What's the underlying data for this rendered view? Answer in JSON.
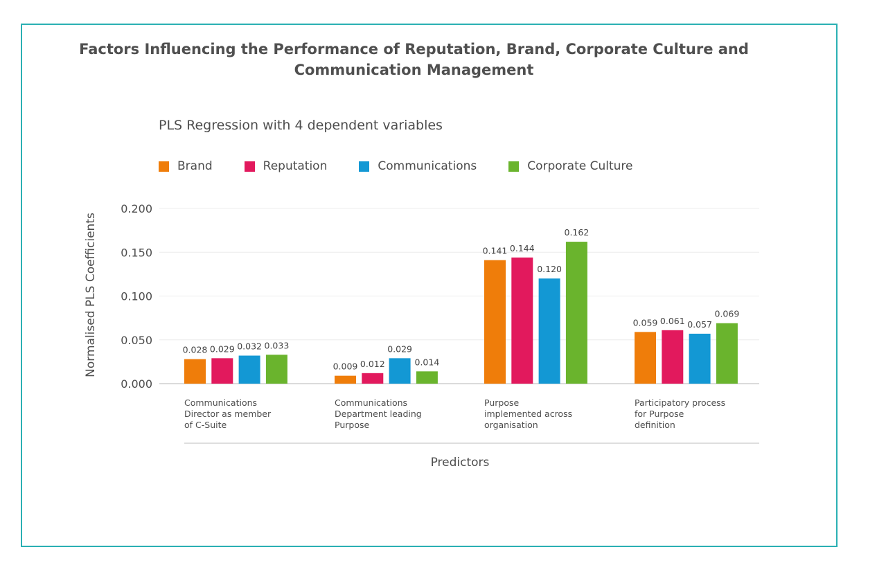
{
  "title": "Factors Influencing the Performance of Reputation, Brand, Corporate Culture and Communication Management",
  "subtitle": "PLS Regression with 4 dependent variables",
  "colors": {
    "frame": "#2ab0b3",
    "brand": "#ef7d0a",
    "reputation": "#e2195d",
    "communications": "#1398d4",
    "corporate_culture": "#6ab42d"
  },
  "legend": [
    {
      "label": "Brand",
      "color": "#ef7d0a"
    },
    {
      "label": "Reputation",
      "color": "#e2195d"
    },
    {
      "label": "Communications",
      "color": "#1398d4"
    },
    {
      "label": "Corporate Culture",
      "color": "#6ab42d"
    }
  ],
  "chart_data": {
    "type": "bar",
    "title": "Factors Influencing the Performance of Reputation, Brand, Corporate Culture and Communication Management",
    "subtitle": "PLS Regression with 4 dependent variables",
    "xlabel": "Predictors",
    "ylabel": "Normalised PLS Coefficients",
    "ylim": [
      0,
      0.2
    ],
    "yticks": [
      "0.000",
      "0.050",
      "0.100",
      "0.150",
      "0.200"
    ],
    "grid": true,
    "legend_position": "top-left",
    "categories": [
      [
        "Communications",
        "Director as member",
        "of C-Suite"
      ],
      [
        "Communications",
        "Department leading",
        "Purpose"
      ],
      [
        "Purpose",
        "implemented across",
        "organisation"
      ],
      [
        "Participatory process",
        "for Purpose",
        "definition"
      ]
    ],
    "series": [
      {
        "name": "Brand",
        "color": "#ef7d0a",
        "values": [
          0.028,
          0.009,
          0.141,
          0.059
        ],
        "labels": [
          "0.028",
          "0.009",
          "0.141",
          "0.059"
        ]
      },
      {
        "name": "Reputation",
        "color": "#e2195d",
        "values": [
          0.029,
          0.012,
          0.144,
          0.061
        ],
        "labels": [
          "0.029",
          "0.012",
          "0.144",
          "0.061"
        ]
      },
      {
        "name": "Communications",
        "color": "#1398d4",
        "values": [
          0.032,
          0.029,
          0.12,
          0.057
        ],
        "labels": [
          "0.032",
          "0.029",
          "0.120",
          "0.057"
        ]
      },
      {
        "name": "Corporate Culture",
        "color": "#6ab42d",
        "values": [
          0.033,
          0.014,
          0.162,
          0.069
        ],
        "labels": [
          "0.033",
          "0.014",
          "0.162",
          "0.069"
        ]
      }
    ]
  }
}
